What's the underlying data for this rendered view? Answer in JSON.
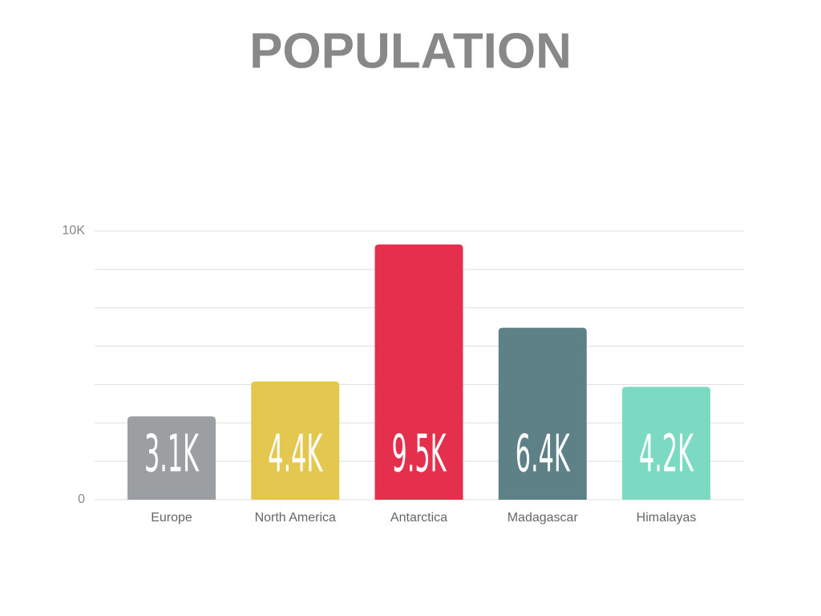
{
  "chart_data": {
    "type": "bar",
    "title": "POPULATION",
    "categories": [
      "Europe",
      "North America",
      "Antarctica",
      "Madagascar",
      "Himalayas"
    ],
    "values": [
      3100,
      4400,
      9500,
      6400,
      4200
    ],
    "value_labels": [
      "3.1K",
      "4.4K",
      "9.5K",
      "6.4K",
      "4.2K"
    ],
    "colors": [
      "#9b9fa2",
      "#e3c74f",
      "#e5304d",
      "#5d8186",
      "#7ddac2"
    ],
    "ylim": [
      0,
      10000
    ],
    "yticks": [
      0,
      {
        "value": 10000,
        "label": "10K"
      }
    ],
    "grid_values": [
      1428.6,
      2857.1,
      4285.7,
      5714.3,
      7142.9,
      8571.4
    ],
    "grid": true
  }
}
